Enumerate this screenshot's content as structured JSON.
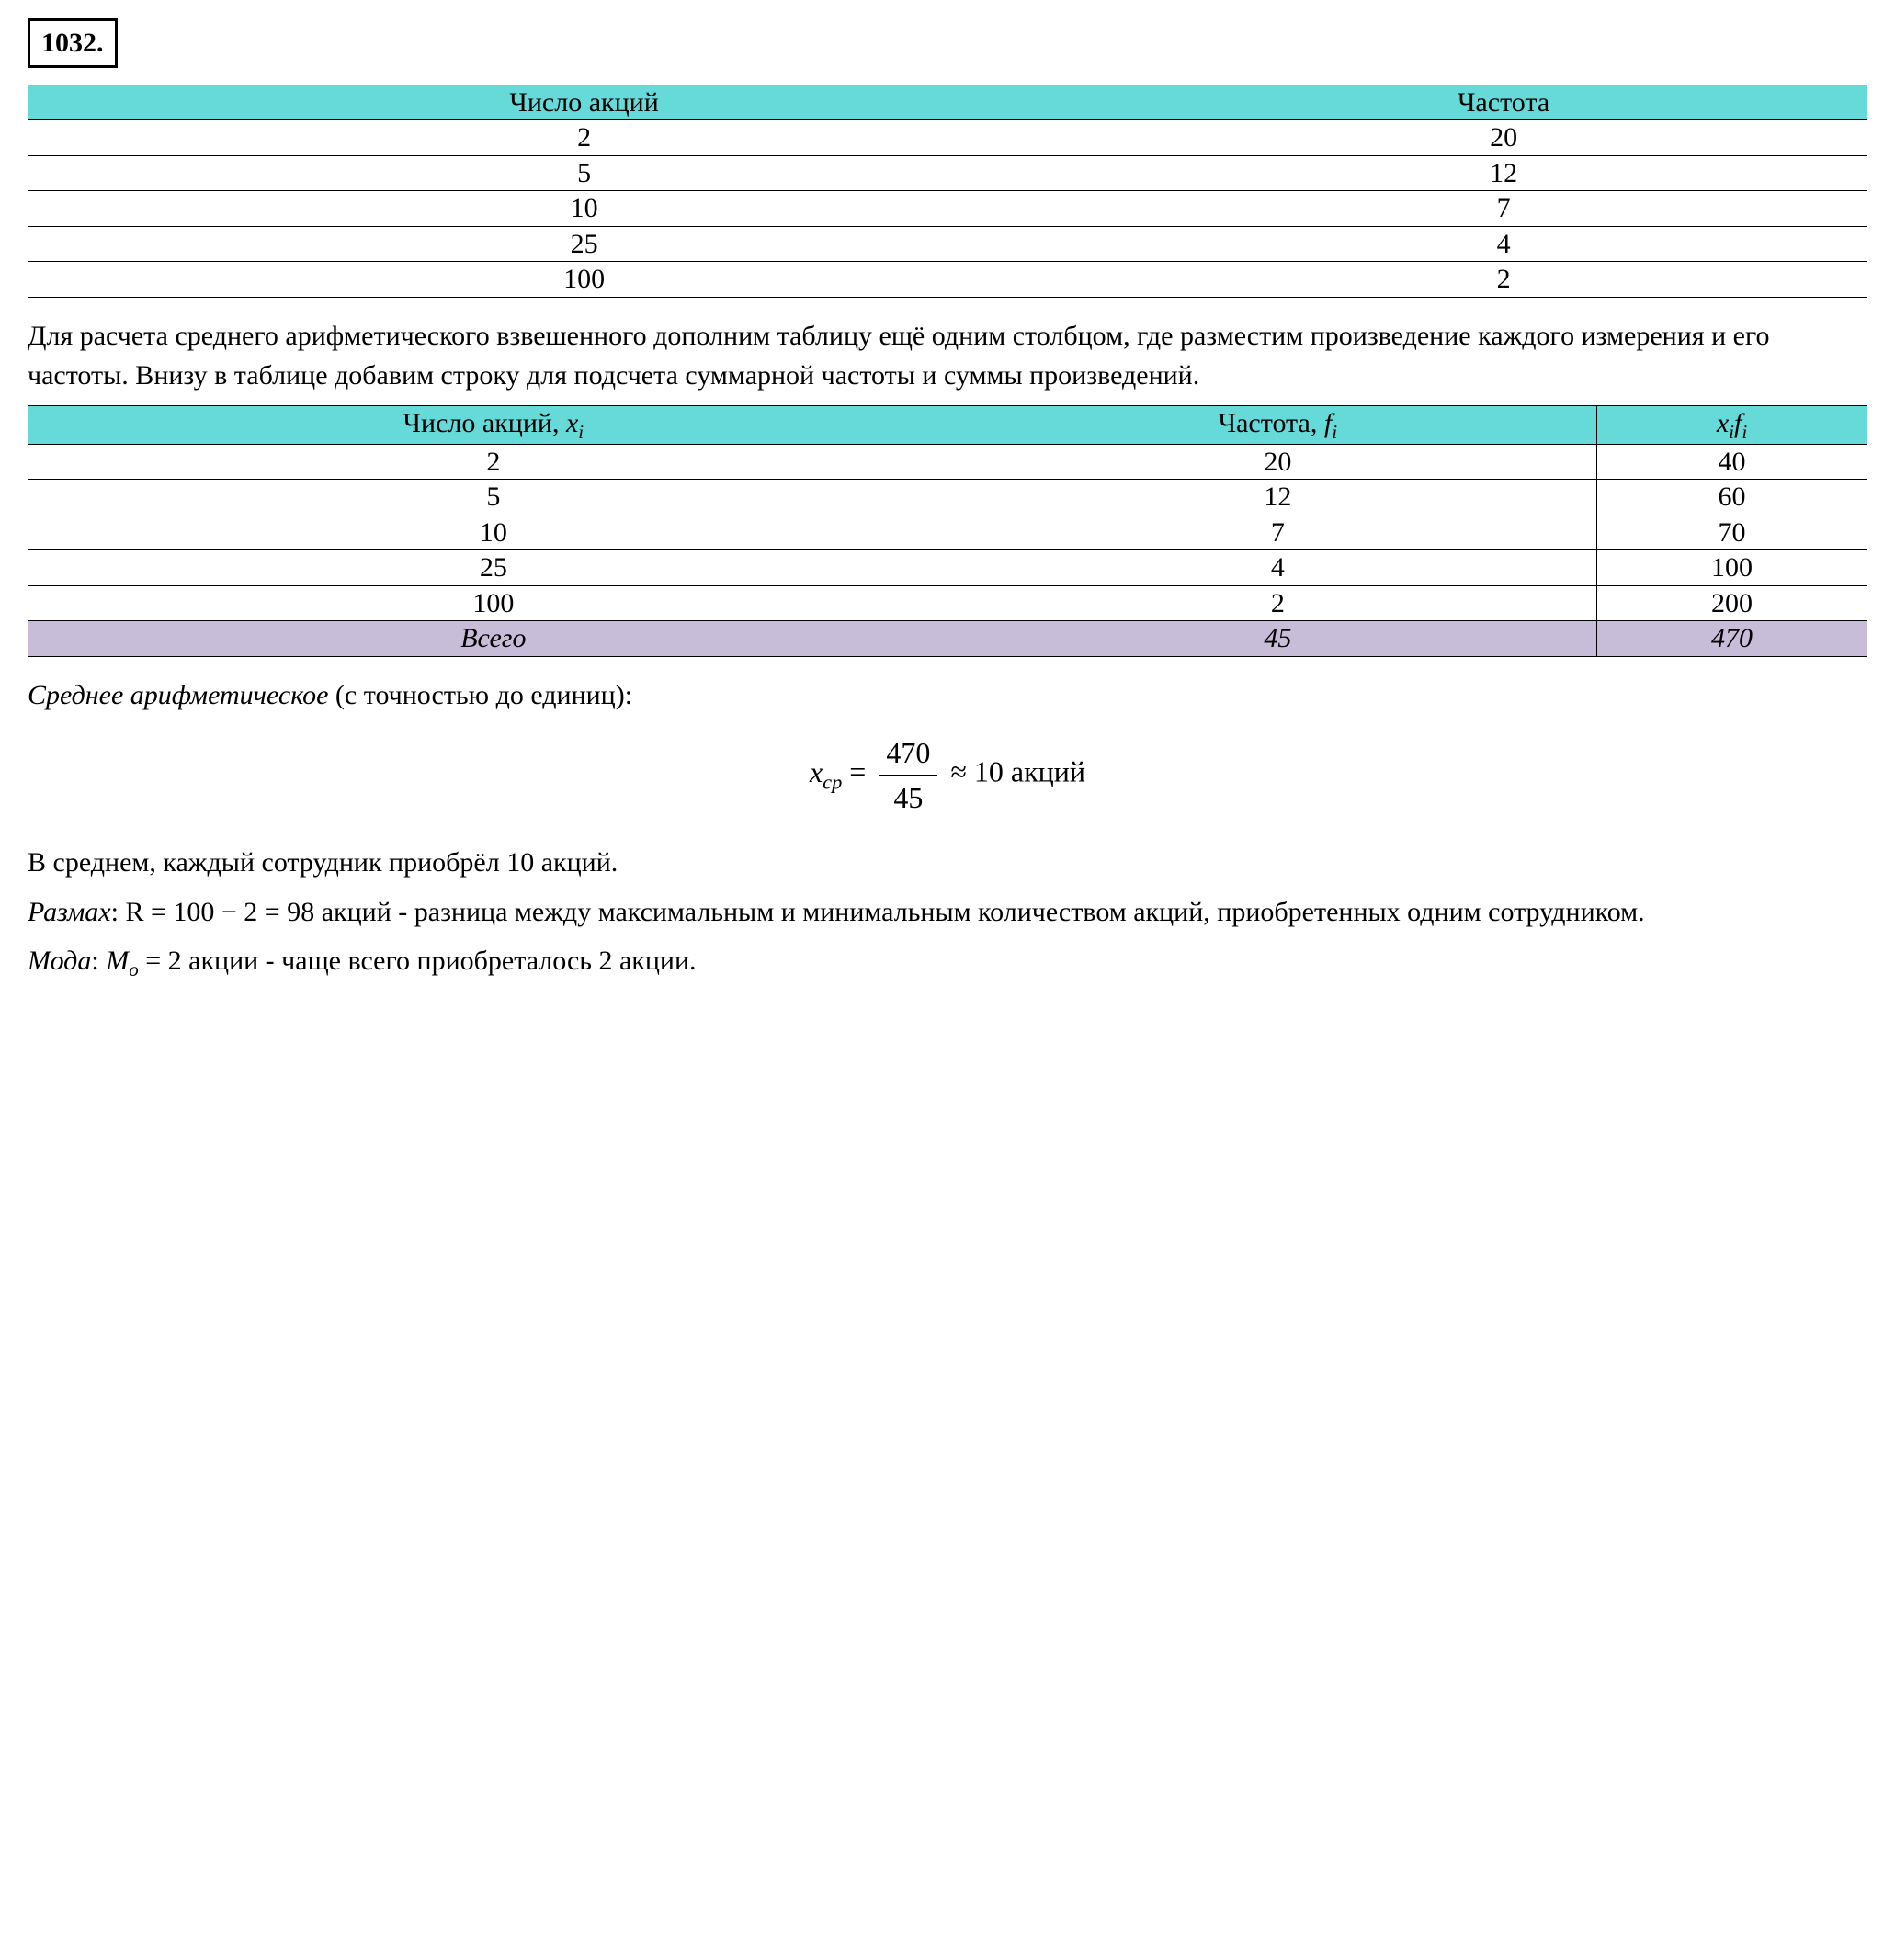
{
  "colors": {
    "header_bg": "#66d9d9",
    "total_bg": "#c7bdd9",
    "border": "#000000",
    "text": "#000000",
    "background": "#ffffff"
  },
  "problem_number": "1032.",
  "table1": {
    "headers": [
      "Число акций",
      "Частота"
    ],
    "rows": [
      [
        "2",
        "20"
      ],
      [
        "5",
        "12"
      ],
      [
        "10",
        "7"
      ],
      [
        "25",
        "4"
      ],
      [
        "100",
        "2"
      ]
    ]
  },
  "para1": "Для расчета среднего арифметического взвешенного дополним таблицу ещё одним столбцом, где разместим произведение каждого измерения и его частоты. Внизу в таблице добавим строку для подсчета суммарной частоты и суммы произведений.",
  "table2": {
    "headers": {
      "col1_pre": "Число акций, ",
      "col1_var": "x",
      "col1_sub": "i",
      "col2_pre": "Частота, ",
      "col2_var": "f",
      "col2_sub": "i",
      "col3_var1": "x",
      "col3_sub1": "i",
      "col3_var2": "f",
      "col3_sub2": "i"
    },
    "rows": [
      [
        "2",
        "20",
        "40"
      ],
      [
        "5",
        "12",
        "60"
      ],
      [
        "10",
        "7",
        "70"
      ],
      [
        "25",
        "4",
        "100"
      ],
      [
        "100",
        "2",
        "200"
      ]
    ],
    "total": [
      "Всего",
      "45",
      "470"
    ]
  },
  "mean_label": "Среднее арифметическое",
  "mean_suffix": " (с точностью до единиц):",
  "formula": {
    "lhs_var": "x",
    "lhs_sub": "ср",
    "eq": " = ",
    "numerator": "470",
    "denominator": "45",
    "approx": " ≈ 10 акций"
  },
  "mean_conclusion": "В среднем, каждый сотрудник приобрёл 10 акций.",
  "range_label": "Размах",
  "range_formula": ": R = 100 − 2 = 98 акций  - разница между максимальным и минимальным количеством акций, приобретенных одним сотрудником.",
  "mode_label": "Мода",
  "mode_text_pre": ": ",
  "mode_var": "M",
  "mode_sub": "o",
  "mode_text_post": " = 2 акции - чаще всего приобреталось 2 акции."
}
